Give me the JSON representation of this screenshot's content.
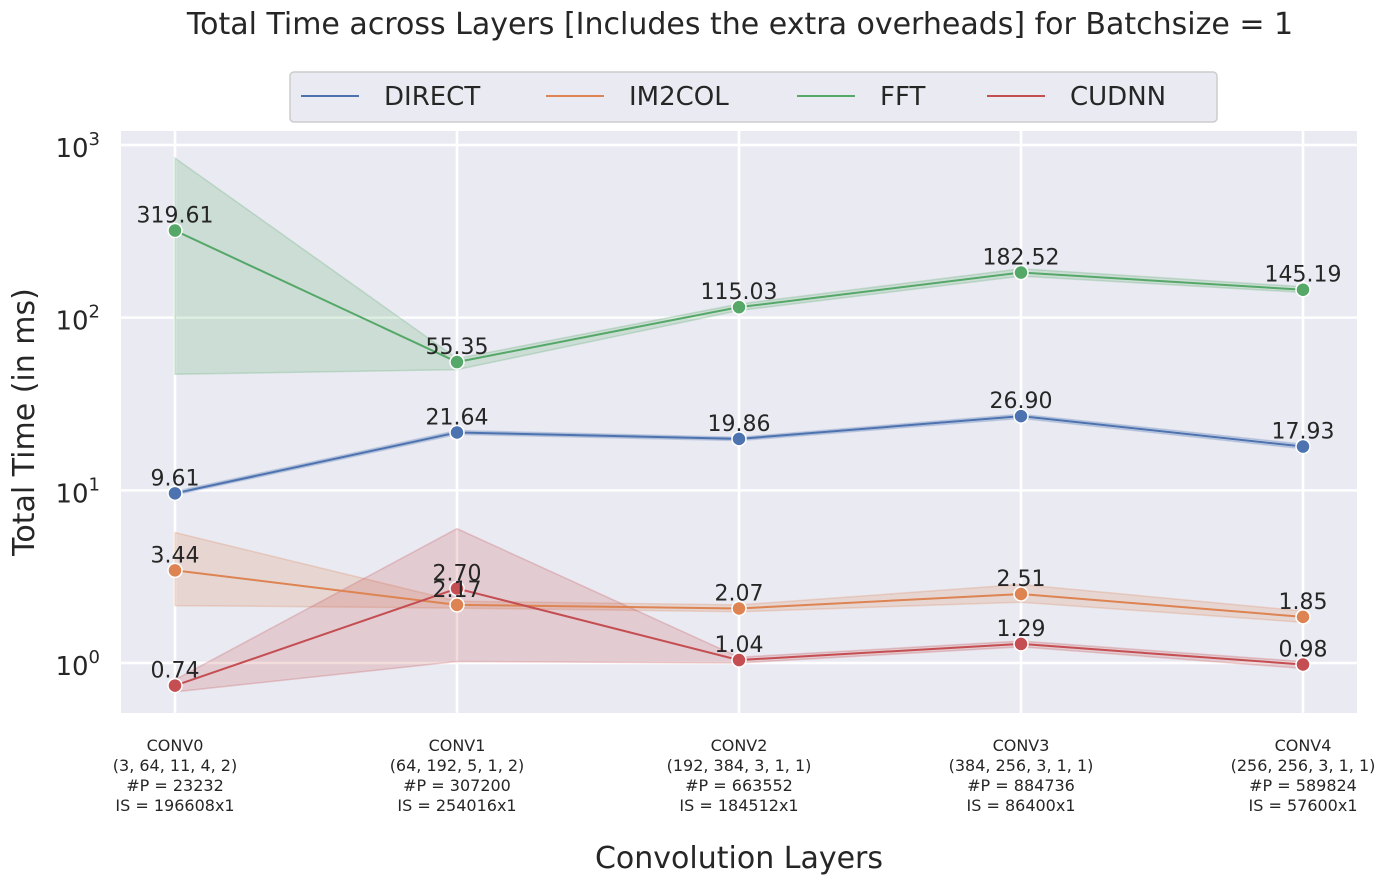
{
  "chart_data": {
    "type": "line",
    "title": "Total Time across Layers [Includes the extra overheads]  for Batchsize = 1",
    "xlabel": "Convolution Layers",
    "ylabel": "Total Time (in ms)",
    "yscale": "log",
    "ylim": [
      0.5,
      1200
    ],
    "yticks": [
      {
        "value": 1,
        "base": "10",
        "exp": "0"
      },
      {
        "value": 10,
        "base": "10",
        "exp": "1"
      },
      {
        "value": 100,
        "base": "10",
        "exp": "2"
      },
      {
        "value": 1000,
        "base": "10",
        "exp": "3"
      }
    ],
    "grid": true,
    "legend_position": "top-center",
    "categories": [
      {
        "name": "CONV0",
        "params": "(3, 64, 11, 4, 2)",
        "p": "#P = 23232",
        "is": "IS = 196608x1"
      },
      {
        "name": "CONV1",
        "params": "(64, 192, 5, 1, 2)",
        "p": "#P = 307200",
        "is": "IS = 254016x1"
      },
      {
        "name": "CONV2",
        "params": "(192, 384, 3, 1, 1)",
        "p": "#P = 663552",
        "is": "IS = 184512x1"
      },
      {
        "name": "CONV3",
        "params": "(384, 256, 3, 1, 1)",
        "p": "#P = 884736",
        "is": "IS = 86400x1"
      },
      {
        "name": "CONV4",
        "params": "(256, 256, 3, 1, 1)",
        "p": "#P = 589824",
        "is": "IS = 57600x1"
      }
    ],
    "series": [
      {
        "name": "DIRECT",
        "color": "#4c72b0",
        "values": [
          9.61,
          21.64,
          19.86,
          26.9,
          17.93
        ],
        "labels": [
          "9.61",
          "21.64",
          "19.86",
          "26.90",
          "17.93"
        ],
        "band_low": [
          9.4,
          21.1,
          19.4,
          26.1,
          17.4
        ],
        "band_high": [
          9.85,
          22.2,
          20.3,
          27.6,
          18.5
        ]
      },
      {
        "name": "IM2COL",
        "color": "#dd8452",
        "values": [
          3.44,
          2.17,
          2.07,
          2.51,
          1.85
        ],
        "labels": [
          "3.44",
          "2.17",
          "2.07",
          "2.51",
          "1.85"
        ],
        "band_low": [
          2.15,
          2.08,
          1.98,
          2.25,
          1.72
        ],
        "band_high": [
          5.7,
          2.28,
          2.17,
          2.85,
          2.0
        ]
      },
      {
        "name": "FFT",
        "color": "#55a868",
        "values": [
          319.61,
          55.35,
          115.03,
          182.52,
          145.19
        ],
        "labels": [
          "319.61",
          "55.35",
          "115.03",
          "182.52",
          "145.19"
        ],
        "band_low": [
          47,
          50,
          110,
          174,
          140
        ],
        "band_high": [
          840,
          58,
          120,
          192,
          151
        ]
      },
      {
        "name": "CUDNN",
        "color": "#c44e52",
        "values": [
          0.74,
          2.7,
          1.04,
          1.29,
          0.98
        ],
        "labels": [
          "0.74",
          "2.70",
          "1.04",
          "1.29",
          "0.98"
        ],
        "band_low": [
          0.68,
          1.02,
          1.0,
          1.24,
          0.93
        ],
        "band_high": [
          0.8,
          6.0,
          1.08,
          1.34,
          1.02
        ]
      }
    ]
  }
}
